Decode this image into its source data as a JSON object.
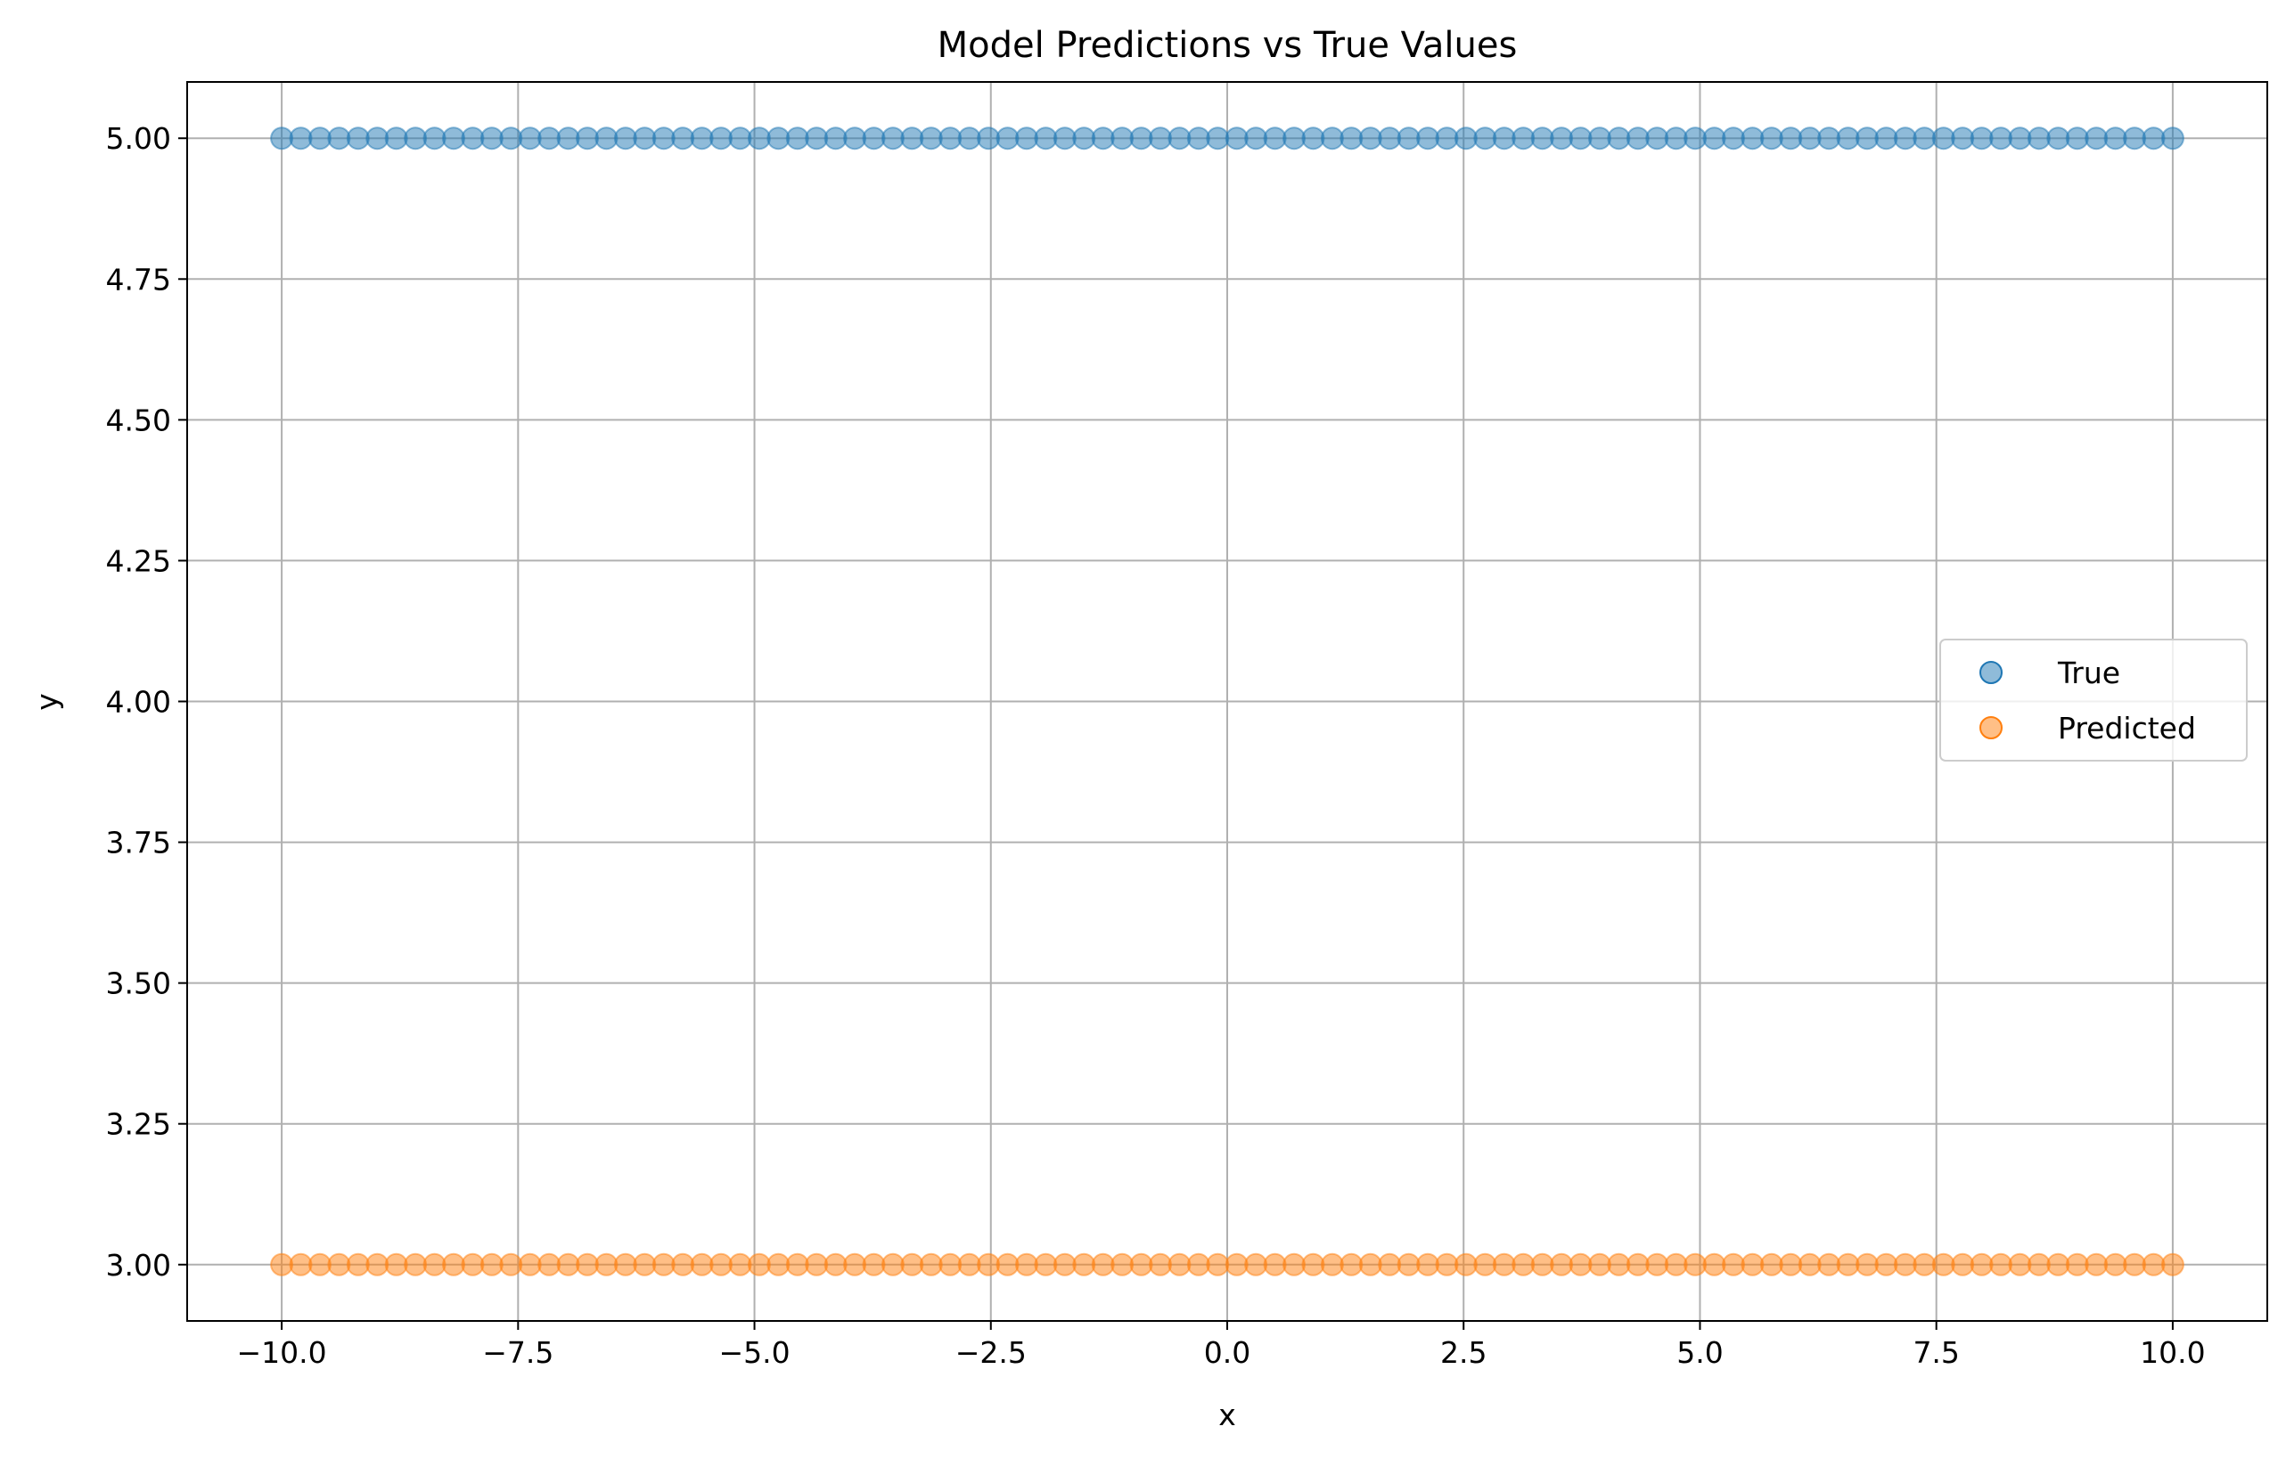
{
  "chart_data": {
    "type": "scatter",
    "title": "Model Predictions vs True Values",
    "xlabel": "x",
    "ylabel": "y",
    "xlim": [
      -11.0,
      11.0
    ],
    "ylim": [
      2.9,
      5.1
    ],
    "grid": true,
    "legend_position": "center-right",
    "x_ticks": [
      -10.0,
      -7.5,
      -5.0,
      -2.5,
      0.0,
      2.5,
      5.0,
      7.5,
      10.0
    ],
    "x_tick_labels": [
      "−10.0",
      "−7.5",
      "−5.0",
      "−2.5",
      "0.0",
      "2.5",
      "5.0",
      "7.5",
      "10.0"
    ],
    "y_ticks": [
      3.0,
      3.25,
      3.5,
      3.75,
      4.0,
      4.25,
      4.5,
      4.75,
      5.0
    ],
    "y_tick_labels": [
      "3.00",
      "3.25",
      "3.50",
      "3.75",
      "4.00",
      "4.25",
      "4.50",
      "4.75",
      "5.00"
    ],
    "series": [
      {
        "name": "True",
        "color": "#1f77b4",
        "x_range": [
          -10.0,
          10.0
        ],
        "point_count": 100,
        "y_value": 5.0
      },
      {
        "name": "Predicted",
        "color": "#ff7f0e",
        "x_range": [
          -10.0,
          10.0
        ],
        "point_count": 100,
        "y_value": 3.0
      }
    ]
  }
}
